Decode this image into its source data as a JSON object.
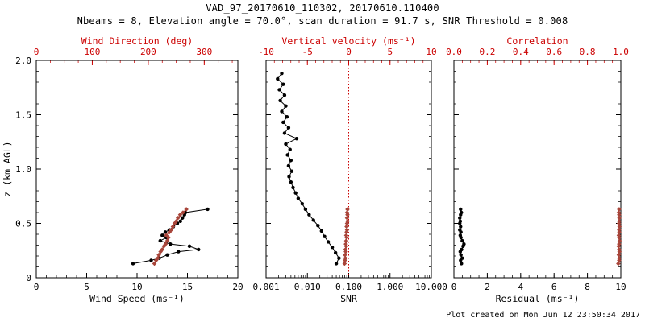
{
  "header": {
    "title": "VAD_97_20170610_110302, 20170610.110400",
    "subtitle": "Nbeams = 8, Elevation angle = 70.0°, scan duration = 91.7 s, SNR Threshold = 0.008"
  },
  "footer": {
    "created": "Plot created on Mon Jun 12 23:50:34 2017"
  },
  "colors": {
    "background": "#ffffff",
    "axis": "#000000",
    "axis_red": "#cc0000",
    "series_red": "#a8453a"
  },
  "chart_data": [
    {
      "type": "line",
      "name": "wind",
      "y_axis": {
        "label": "z (km AGL)",
        "lim": [
          0,
          2
        ],
        "ticks": [
          0,
          0.5,
          1,
          1.5,
          2
        ],
        "tick_labels": [
          "0",
          "0.5",
          "1.0",
          "1.5",
          "2.0"
        ],
        "minor_step": 0.1
      },
      "bottom_axis": {
        "label": "Wind Speed (ms⁻¹)",
        "lim": [
          0,
          20
        ],
        "ticks": [
          0,
          5,
          10,
          15,
          20
        ],
        "tick_labels": [
          "0",
          "5",
          "10",
          "15",
          "20"
        ],
        "minor_step": 1
      },
      "top_axis": {
        "label": "Wind Direction (deg)",
        "lim": [
          0,
          360
        ],
        "ticks": [
          0,
          100,
          200,
          300
        ],
        "tick_labels": [
          "0",
          "100",
          "200",
          "300"
        ],
        "minor_step": 25
      },
      "series": [
        {
          "name": "wind-speed",
          "axis": "bottom",
          "color": "black",
          "marker": "circle",
          "x": [
            9.6,
            11.4,
            12.2,
            13.0,
            14.1,
            16.1,
            15.2,
            13.3,
            12.3,
            12.9,
            12.5,
            12.8,
            13.2,
            13.6,
            14.0,
            14.3,
            14.5,
            14.7,
            14.8,
            17.0
          ],
          "z": [
            0.13,
            0.16,
            0.18,
            0.21,
            0.24,
            0.26,
            0.29,
            0.31,
            0.34,
            0.37,
            0.39,
            0.42,
            0.44,
            0.47,
            0.5,
            0.52,
            0.55,
            0.58,
            0.6,
            0.63
          ]
        },
        {
          "name": "wind-direction",
          "axis": "top",
          "color": "red",
          "marker": "diamond",
          "x": [
            211,
            214,
            217,
            219,
            222,
            225,
            228,
            231,
            234,
            236,
            232,
            238,
            241,
            244,
            247,
            250,
            253,
            257,
            262,
            268
          ],
          "z": [
            0.13,
            0.16,
            0.18,
            0.21,
            0.24,
            0.26,
            0.29,
            0.31,
            0.34,
            0.37,
            0.39,
            0.42,
            0.44,
            0.47,
            0.5,
            0.52,
            0.55,
            0.58,
            0.6,
            0.63
          ]
        }
      ]
    },
    {
      "type": "line",
      "name": "snr",
      "y_axis": {
        "label": "",
        "lim": [
          0,
          2
        ],
        "ticks": [
          0,
          0.5,
          1,
          1.5,
          2
        ],
        "tick_labels": [],
        "minor_step": 0.1
      },
      "bottom_axis": {
        "label": "SNR",
        "scale": "log",
        "lim": [
          0.001,
          10
        ],
        "ticks": [
          0.001,
          0.01,
          0.1,
          1,
          10
        ],
        "tick_labels": [
          "0.001",
          "0.010",
          "0.100",
          "1.000",
          "10.000"
        ]
      },
      "top_axis": {
        "label": "Vertical velocity (ms⁻¹)",
        "lim": [
          -10,
          10
        ],
        "ticks": [
          -10,
          -5,
          0,
          5,
          10
        ],
        "tick_labels": [
          "-10",
          "-5",
          "0",
          "5",
          "10"
        ],
        "minor_step": 1
      },
      "ref_line": {
        "axis": "top",
        "value": 0,
        "color": "red",
        "style": "dotted"
      },
      "series": [
        {
          "name": "snr",
          "axis": "bottom",
          "color": "black",
          "marker": "circle",
          "x": [
            0.05,
            0.058,
            0.048,
            0.04,
            0.032,
            0.026,
            0.022,
            0.018,
            0.014,
            0.011,
            0.009,
            0.0075,
            0.006,
            0.0052,
            0.0045,
            0.004,
            0.0036,
            0.0042,
            0.0035,
            0.004,
            0.0033,
            0.0038,
            0.003,
            0.0055,
            0.0028,
            0.0035,
            0.0026,
            0.0032,
            0.0024,
            0.003,
            0.0022,
            0.0028,
            0.0021,
            0.0026,
            0.0019,
            0.0024
          ],
          "z": [
            0.13,
            0.18,
            0.23,
            0.28,
            0.33,
            0.38,
            0.43,
            0.48,
            0.53,
            0.58,
            0.63,
            0.68,
            0.73,
            0.78,
            0.83,
            0.88,
            0.93,
            0.98,
            1.03,
            1.08,
            1.13,
            1.18,
            1.23,
            1.28,
            1.33,
            1.38,
            1.43,
            1.48,
            1.53,
            1.58,
            1.63,
            1.68,
            1.73,
            1.78,
            1.83,
            1.88
          ]
        },
        {
          "name": "vertical-velocity",
          "axis": "top",
          "color": "red",
          "marker": "diamond",
          "x": [
            -0.5,
            -0.45,
            -0.4,
            -0.45,
            -0.35,
            -0.4,
            -0.3,
            -0.35,
            -0.3,
            -0.25,
            -0.3,
            -0.25,
            -0.2,
            -0.25,
            -0.2,
            -0.15,
            -0.2,
            -0.15,
            -0.2,
            -0.15
          ],
          "z": [
            0.13,
            0.16,
            0.18,
            0.21,
            0.24,
            0.26,
            0.29,
            0.31,
            0.34,
            0.37,
            0.39,
            0.42,
            0.44,
            0.47,
            0.5,
            0.52,
            0.55,
            0.58,
            0.6,
            0.63
          ]
        }
      ]
    },
    {
      "type": "line",
      "name": "residual",
      "y_axis": {
        "label": "",
        "lim": [
          0,
          2
        ],
        "ticks": [
          0,
          0.5,
          1,
          1.5,
          2
        ],
        "tick_labels": [],
        "minor_step": 0.1
      },
      "bottom_axis": {
        "label": "Residual (ms⁻¹)",
        "lim": [
          0,
          10
        ],
        "ticks": [
          0,
          2,
          4,
          6,
          8,
          10
        ],
        "tick_labels": [
          "0",
          "2",
          "4",
          "6",
          "8",
          "10"
        ],
        "minor_step": 0.5
      },
      "top_axis": {
        "label": "Correlation",
        "lim": [
          0,
          1
        ],
        "ticks": [
          0,
          0.2,
          0.4,
          0.6,
          0.8,
          1
        ],
        "tick_labels": [
          "0.0",
          "0.2",
          "0.4",
          "0.6",
          "0.8",
          "1.0"
        ],
        "minor_step": 0.05
      },
      "series": [
        {
          "name": "residual",
          "axis": "bottom",
          "color": "black",
          "marker": "circle",
          "x": [
            0.45,
            0.4,
            0.5,
            0.42,
            0.38,
            0.46,
            0.55,
            0.6,
            0.5,
            0.42,
            0.38,
            0.42,
            0.35,
            0.4,
            0.35,
            0.38,
            0.35,
            0.4,
            0.45,
            0.4
          ],
          "z": [
            0.13,
            0.16,
            0.18,
            0.21,
            0.24,
            0.26,
            0.29,
            0.31,
            0.34,
            0.37,
            0.39,
            0.42,
            0.44,
            0.47,
            0.5,
            0.52,
            0.55,
            0.58,
            0.6,
            0.63
          ]
        },
        {
          "name": "correlation",
          "axis": "top",
          "color": "red",
          "marker": "diamond",
          "x": [
            0.985,
            0.99,
            0.99,
            0.988,
            0.992,
            0.99,
            0.987,
            0.99,
            0.993,
            0.99,
            0.988,
            0.991,
            0.99,
            0.992,
            0.989,
            0.99,
            0.991,
            0.99,
            0.988,
            0.99
          ],
          "z": [
            0.13,
            0.16,
            0.18,
            0.21,
            0.24,
            0.26,
            0.29,
            0.31,
            0.34,
            0.37,
            0.39,
            0.42,
            0.44,
            0.47,
            0.5,
            0.52,
            0.55,
            0.58,
            0.6,
            0.63
          ]
        }
      ]
    }
  ]
}
